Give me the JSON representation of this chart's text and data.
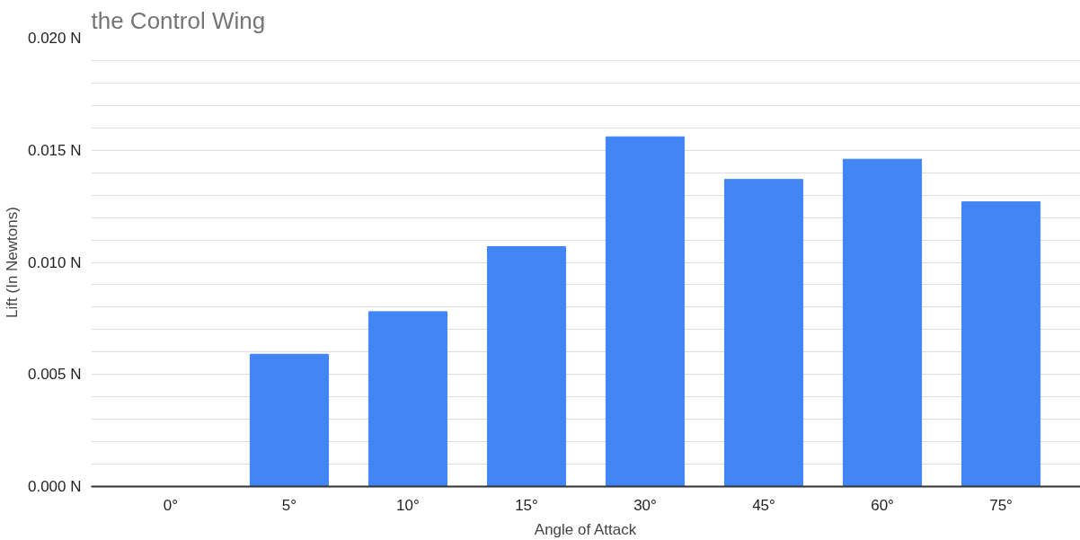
{
  "chart_data": {
    "type": "bar",
    "title": "the Control Wing",
    "xlabel": "Angle of Attack",
    "ylabel": "Lift (In Newtons)",
    "categories": [
      "0°",
      "5°",
      "10°",
      "15°",
      "30°",
      "45°",
      "60°",
      "75°"
    ],
    "values": [
      0,
      0.0059,
      0.0078,
      0.0107,
      0.0156,
      0.0137,
      0.0146,
      0.0127
    ],
    "color": "#4285f4",
    "ylim": [
      0,
      0.02
    ],
    "yticks": [
      {
        "value": 0,
        "label": "0.000 N"
      },
      {
        "value": 0.001,
        "label": null
      },
      {
        "value": 0.002,
        "label": null
      },
      {
        "value": 0.003,
        "label": null
      },
      {
        "value": 0.004,
        "label": null
      },
      {
        "value": 0.005,
        "label": "0.005 N"
      },
      {
        "value": 0.006,
        "label": null
      },
      {
        "value": 0.007,
        "label": null
      },
      {
        "value": 0.008,
        "label": null
      },
      {
        "value": 0.009,
        "label": null
      },
      {
        "value": 0.01,
        "label": "0.010 N"
      },
      {
        "value": 0.011,
        "label": null
      },
      {
        "value": 0.012,
        "label": null
      },
      {
        "value": 0.013,
        "label": null
      },
      {
        "value": 0.014,
        "label": null
      },
      {
        "value": 0.015,
        "label": "0.015 N"
      },
      {
        "value": 0.016,
        "label": null
      },
      {
        "value": 0.017,
        "label": null
      },
      {
        "value": 0.018,
        "label": null
      },
      {
        "value": 0.019,
        "label": null
      },
      {
        "value": 0.02,
        "label": "0.020 N"
      }
    ],
    "grid": "y"
  }
}
